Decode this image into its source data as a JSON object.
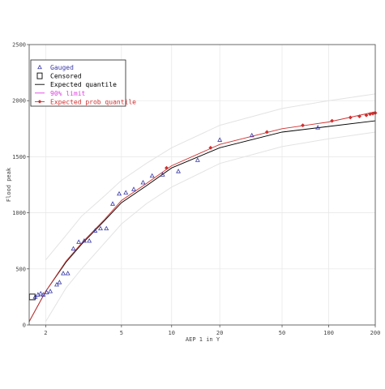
{
  "chart_data": {
    "type": "scatter",
    "xlabel": "AEP 1 in Y",
    "ylabel": "Flood peak",
    "x_scale": "gumbel-reduced-variate",
    "xlim": [
      1.7,
      200
    ],
    "ylim": [
      0,
      2500
    ],
    "x_ticks": [
      2,
      5,
      10,
      20,
      50,
      100,
      200
    ],
    "y_ticks": [
      0,
      500,
      1000,
      1500,
      2000,
      2500
    ],
    "x_tick_labels": [
      "2",
      "5",
      "10",
      "20",
      "50",
      "100",
      "200"
    ],
    "y_tick_labels": [
      "0",
      "500",
      "1000",
      "1500",
      "2000",
      "2500"
    ],
    "grid": true,
    "legend_position": "top-left",
    "legend": [
      {
        "key": "gauged",
        "label": "Gauged",
        "color": "#3a3aa8",
        "marker": "triangle-open"
      },
      {
        "key": "censored",
        "label": "Censored",
        "color": "#000000",
        "marker": "square-open"
      },
      {
        "key": "expected",
        "label": "Expected quantile",
        "color": "#000000",
        "marker": "line"
      },
      {
        "key": "limit",
        "label": "90% limit",
        "color": "#e040e0",
        "marker": "line"
      },
      {
        "key": "prob",
        "label": "Expected prob quantile",
        "color": "#d03030",
        "marker": "line-diamond"
      }
    ],
    "series": [
      {
        "key": "gauged",
        "x": [
          1.8,
          1.85,
          1.9,
          1.95,
          2.02,
          2.1,
          2.25,
          2.32,
          2.42,
          2.55,
          2.72,
          2.9,
          3.1,
          3.3,
          3.55,
          3.8,
          4.1,
          4.45,
          4.85,
          5.3,
          5.9,
          6.7,
          7.6,
          8.8,
          11,
          14.5,
          20,
          32,
          85
        ],
        "y": [
          250,
          270,
          280,
          270,
          290,
          300,
          360,
          380,
          460,
          460,
          680,
          740,
          750,
          750,
          840,
          860,
          860,
          1080,
          1170,
          1180,
          1210,
          1270,
          1330,
          1340,
          1370,
          1470,
          1650,
          1690,
          1760
        ]
      },
      {
        "key": "censored",
        "x": [
          1.75
        ],
        "y": [
          250
        ]
      },
      {
        "key": "expected",
        "x": [
          1.7,
          2,
          2.5,
          3,
          4,
          5,
          7,
          10,
          20,
          50,
          100,
          200
        ],
        "y": [
          30,
          300,
          560,
          720,
          930,
          1090,
          1240,
          1400,
          1580,
          1720,
          1770,
          1820
        ]
      },
      {
        "key": "limit_upper",
        "x": [
          2,
          2.5,
          3,
          4,
          5,
          7,
          10,
          20,
          50,
          100,
          200
        ],
        "y": [
          580,
          800,
          970,
          1150,
          1290,
          1440,
          1580,
          1780,
          1930,
          2000,
          2060
        ]
      },
      {
        "key": "limit_lower",
        "x": [
          2,
          2.5,
          3,
          4,
          5,
          7,
          10,
          20,
          50,
          100,
          200
        ],
        "y": [
          30,
          330,
          500,
          730,
          900,
          1080,
          1230,
          1440,
          1590,
          1660,
          1720
        ]
      },
      {
        "key": "prob",
        "x": [
          1.7,
          2,
          2.5,
          3,
          4,
          5,
          7,
          10,
          20,
          50,
          100,
          200
        ],
        "y": [
          30,
          300,
          570,
          730,
          940,
          1110,
          1260,
          1420,
          1610,
          1750,
          1810,
          1900
        ]
      },
      {
        "key": "prob_markers",
        "x": [
          9.3,
          17.5,
          40,
          68,
          105,
          138,
          158,
          175,
          185,
          193,
          200
        ],
        "y": [
          1400,
          1580,
          1720,
          1780,
          1820,
          1850,
          1860,
          1870,
          1880,
          1885,
          1890
        ]
      }
    ]
  }
}
